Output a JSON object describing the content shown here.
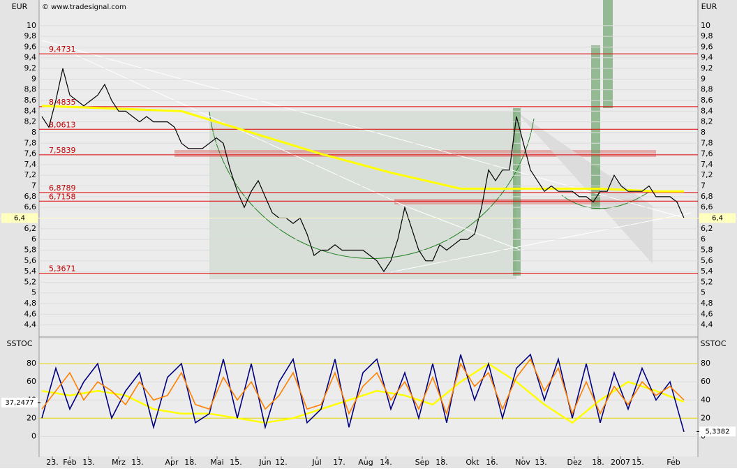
{
  "chart_data": [
    {
      "type": "line",
      "title": "EUR",
      "watermark": "© www.tradesignal.com",
      "x": [
        0,
        1,
        2,
        3,
        4,
        5,
        6,
        7,
        8,
        9,
        10,
        11,
        12,
        13,
        14,
        15,
        16,
        17,
        18,
        19,
        20,
        21,
        22,
        23,
        24,
        25,
        26,
        27,
        28,
        29,
        30,
        31,
        32,
        33,
        34,
        35,
        36,
        37,
        38,
        39,
        40,
        41,
        42,
        43,
        44,
        45,
        46,
        47,
        48,
        49,
        50,
        51,
        52,
        53,
        54,
        55,
        56,
        57,
        58,
        59,
        60,
        61,
        62,
        63,
        64,
        65,
        66,
        67,
        68,
        69,
        70,
        71,
        72,
        73,
        74,
        75,
        76,
        77,
        78,
        79,
        80,
        81,
        82,
        83,
        84,
        85,
        86,
        87,
        88,
        89,
        90,
        91,
        92
      ],
      "series": [
        {
          "color": "#000000",
          "values": [
            8.3,
            8.1,
            8.6,
            9.2,
            8.7,
            8.6,
            8.5,
            8.6,
            8.7,
            8.9,
            8.6,
            8.4,
            8.4,
            8.3,
            8.2,
            8.3,
            8.2,
            8.2,
            8.2,
            8.1,
            7.8,
            7.7,
            7.7,
            7.7,
            7.8,
            7.9,
            7.8,
            7.3,
            6.9,
            6.6,
            6.9,
            7.1,
            6.8,
            6.5,
            6.4,
            6.4,
            6.3,
            6.4,
            6.1,
            5.7,
            5.8,
            5.8,
            5.9,
            5.8,
            5.8,
            5.8,
            5.8,
            5.7,
            5.6,
            5.4,
            5.6,
            6.0,
            6.6,
            6.2,
            5.8,
            5.6,
            5.6,
            5.9,
            5.8,
            5.9,
            6.0,
            6.0,
            6.1,
            6.6,
            7.3,
            7.1,
            7.3,
            7.3,
            8.3,
            7.8,
            7.3,
            7.1,
            6.9,
            7.0,
            6.9,
            6.9,
            6.9,
            6.8,
            6.8,
            6.7,
            6.9,
            6.9,
            7.2,
            7.0,
            6.9,
            6.9,
            6.9,
            7.0,
            6.8,
            6.8,
            6.8,
            6.7,
            6.4
          ]
        }
      ],
      "ma": {
        "color": "#ffff00",
        "x": [
          0,
          10,
          20,
          30,
          40,
          50,
          60,
          70,
          80,
          88,
          92
        ],
        "values": [
          8.5,
          8.45,
          8.4,
          8.0,
          7.6,
          7.25,
          6.95,
          6.95,
          6.95,
          6.9,
          6.9
        ]
      },
      "levels": [
        {
          "value": 9.4731,
          "label": "9,4731"
        },
        {
          "value": 8.4835,
          "label": "8,4835"
        },
        {
          "value": 8.0613,
          "label": "8,0613"
        },
        {
          "value": 7.5839,
          "label": "7,5839"
        },
        {
          "value": 6.8789,
          "label": "6,8789"
        },
        {
          "value": 6.7158,
          "label": "6,7158"
        },
        {
          "value": 5.3671,
          "label": "5,3671"
        }
      ],
      "last": {
        "value": 6.4,
        "label": "6,4"
      },
      "xlim": [
        -0.4,
        94
      ],
      "ylim": [
        4.2,
        10.48
      ],
      "yticks": [
        {
          "value": 4.4,
          "label": "4,4"
        },
        {
          "value": 4.6,
          "label": "4,6"
        },
        {
          "value": 4.8,
          "label": "4,8"
        },
        5,
        {
          "value": 5.2,
          "label": "5,2"
        },
        {
          "value": 5.4,
          "label": "5,4"
        },
        {
          "value": 5.6,
          "label": "5,6"
        },
        {
          "value": 5.8,
          "label": "5,8"
        },
        6,
        {
          "value": 6.2,
          "label": "6,2"
        },
        {
          "value": 6.4,
          "label": "6,4"
        },
        {
          "value": 6.6,
          "label": "6,6"
        },
        {
          "value": 6.8,
          "label": "6,8"
        },
        7,
        {
          "value": 7.2,
          "label": "7,2"
        },
        {
          "value": 7.4,
          "label": "7,4"
        },
        {
          "value": 7.6,
          "label": "7,6"
        },
        {
          "value": 7.8,
          "label": "7,8"
        },
        8,
        {
          "value": 8.2,
          "label": "8,2"
        },
        {
          "value": 8.4,
          "label": "8,4"
        },
        {
          "value": 8.6,
          "label": "8,6"
        },
        {
          "value": 8.8,
          "label": "8,8"
        },
        9,
        {
          "value": 9.2,
          "label": "9,2"
        },
        {
          "value": 9.4,
          "label": "9,4"
        },
        {
          "value": 9.6,
          "label": "9,6"
        },
        {
          "value": 9.8,
          "label": "9,8"
        },
        10
      ],
      "xticks": [
        {
          "value": 1.5,
          "label": "23."
        },
        {
          "value": 4,
          "label": "Feb"
        },
        {
          "value": 6.7,
          "label": "13."
        },
        {
          "value": 11,
          "label": "Mrz"
        },
        {
          "value": 13.7,
          "label": "13."
        },
        {
          "value": 18.6,
          "label": "Apr"
        },
        {
          "value": 21.3,
          "label": "18."
        },
        {
          "value": 25.1,
          "label": "Mai"
        },
        {
          "value": 27.8,
          "label": "15."
        },
        {
          "value": 32,
          "label": "Jun"
        },
        {
          "value": 34.3,
          "label": "12."
        },
        {
          "value": 39.4,
          "label": "Jul"
        },
        {
          "value": 42.6,
          "label": "17."
        },
        {
          "value": 46.4,
          "label": "Aug"
        },
        {
          "value": 49.3,
          "label": "14."
        },
        {
          "value": 54.5,
          "label": "Sep"
        },
        {
          "value": 57.3,
          "label": "18."
        },
        {
          "value": 61.7,
          "label": "Okt"
        },
        {
          "value": 64.5,
          "label": "16."
        },
        {
          "value": 68.9,
          "label": "Nov"
        },
        {
          "value": 71.5,
          "label": "13."
        },
        {
          "value": 76.3,
          "label": "Dez"
        },
        {
          "value": 79.7,
          "label": "18."
        },
        {
          "value": 82.9,
          "label": "2007"
        },
        {
          "value": 85.4,
          "label": "15."
        },
        {
          "value": 90.5,
          "label": "Feb"
        }
      ]
    },
    {
      "type": "line",
      "title": "SSTOC",
      "xlim": [
        -0.4,
        94
      ],
      "ylim": [
        -22,
        107
      ],
      "yticks": [
        0,
        20,
        40,
        60,
        80
      ],
      "bands": [
        20,
        80
      ],
      "x": [
        0,
        2,
        4,
        6,
        8,
        10,
        12,
        14,
        16,
        18,
        20,
        22,
        24,
        26,
        28,
        30,
        32,
        34,
        36,
        38,
        40,
        42,
        44,
        46,
        48,
        50,
        52,
        54,
        56,
        58,
        60,
        62,
        64,
        66,
        68,
        70,
        72,
        74,
        76,
        78,
        80,
        82,
        84,
        86,
        88,
        90,
        92
      ],
      "series": [
        {
          "color": "#000080",
          "values": [
            20,
            75,
            30,
            60,
            80,
            20,
            50,
            70,
            10,
            65,
            80,
            15,
            25,
            85,
            20,
            80,
            10,
            60,
            85,
            15,
            30,
            85,
            10,
            70,
            85,
            30,
            70,
            20,
            80,
            15,
            90,
            40,
            80,
            20,
            75,
            90,
            40,
            85,
            20,
            80,
            15,
            70,
            30,
            75,
            40,
            60,
            5
          ]
        },
        {
          "color": "#ff8000",
          "values": [
            30,
            50,
            70,
            40,
            60,
            50,
            35,
            60,
            40,
            45,
            70,
            35,
            30,
            65,
            40,
            60,
            30,
            45,
            70,
            30,
            35,
            70,
            25,
            55,
            70,
            40,
            60,
            30,
            65,
            25,
            80,
            55,
            70,
            30,
            65,
            85,
            50,
            75,
            25,
            60,
            25,
            55,
            35,
            60,
            45,
            55,
            40
          ]
        }
      ],
      "slow": {
        "color": "#ffff00",
        "x": [
          0,
          4,
          8,
          12,
          16,
          20,
          24,
          28,
          32,
          36,
          40,
          44,
          48,
          52,
          56,
          60,
          64,
          68,
          72,
          76,
          80,
          84,
          88,
          92
        ],
        "values": [
          50,
          45,
          50,
          45,
          30,
          25,
          25,
          20,
          15,
          20,
          30,
          40,
          50,
          45,
          35,
          60,
          80,
          60,
          35,
          15,
          40,
          60,
          50,
          38
        ]
      },
      "left_tag": {
        "value": 37.2477,
        "label": "37,2477"
      },
      "right_tag": {
        "value": 5.3382,
        "label": "5,3382"
      }
    }
  ]
}
